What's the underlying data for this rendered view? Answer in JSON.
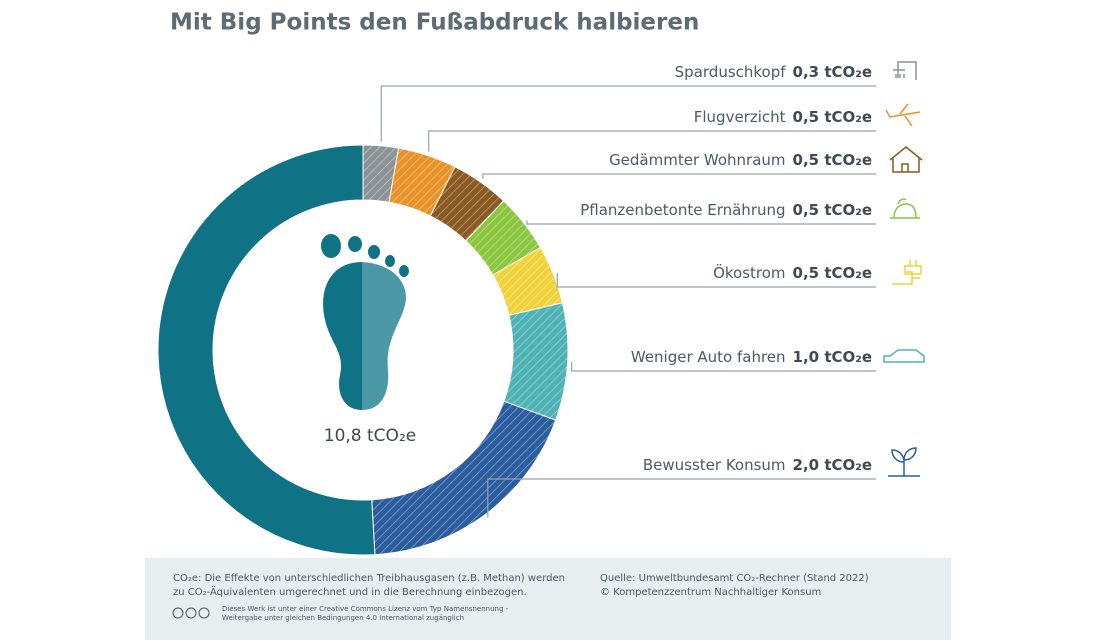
{
  "chart_data": {
    "type": "donut",
    "title": "Mit Big Points den Fußabdruck halbieren",
    "center_label": "10,8 tCO₂e",
    "categories": [
      "Sparduschkopf",
      "Flugverzicht",
      "Gedämmter Wohnraum",
      "Pflanzenbetonte Ernährung",
      "Ökostrom",
      "Weniger Auto fahren",
      "Bewusster Konsum",
      null
    ],
    "values": [
      0.3,
      0.5,
      0.5,
      0.5,
      0.5,
      1.0,
      2.0,
      5.5
    ],
    "value_labels": [
      "0,3 tCO₂e",
      "0,5 tCO₂e",
      "0,5 tCO₂e",
      "0,5 tCO₂e",
      "0,5 tCO₂e",
      "1,0 tCO₂e",
      "2,0 tCO₂e",
      null
    ],
    "colors": [
      "#8c9296",
      "#e8922a",
      "#8a5a22",
      "#8cc63f",
      "#f0d23a",
      "#4fb3b6",
      "#2b5c9e",
      "#0f7285"
    ]
  },
  "footer": {
    "note_1": "CO₂e: Die Effekte von unterschiedlichen Treibhausgasen (z.B. Methan) werden",
    "note_2": "zu CO₂-Äquivalenten umgerechnet und in die Berechnung einbezogen.",
    "license_1": "Dieses Werk ist unter einer Creative Commons Lizenz vom Typ Namensnennung -",
    "license_2": "Weitergabe unter gleichen Bedingungen 4.0 International zugänglich",
    "source_1": "Quelle: Umweltbundesamt CO₂-Rechner (Stand 2022)",
    "source_2": "© Kompetenzzentrum Nachhaltiger Konsum"
  }
}
